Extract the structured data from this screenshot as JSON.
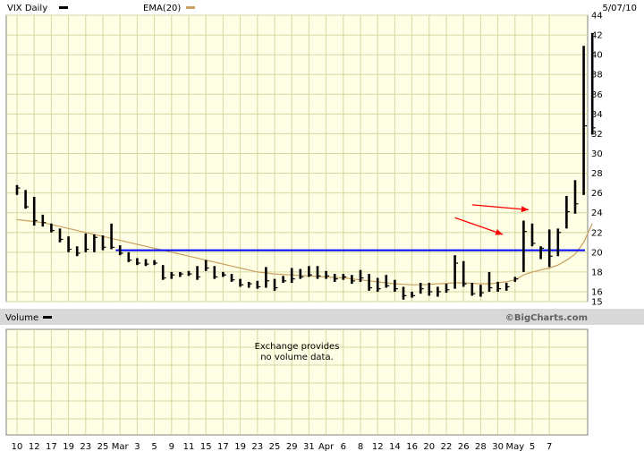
{
  "chart_data": [
    {
      "type": "ohlc",
      "title": "VIX Daily",
      "date": "5/07/10",
      "watermark": "©BigCharts.com",
      "ylim": [
        15,
        44
      ],
      "yticks": [
        15,
        16,
        18,
        20,
        22,
        24,
        26,
        28,
        30,
        32,
        34,
        36,
        38,
        40,
        42,
        44
      ],
      "grid": true,
      "legend": [
        {
          "name": "VIX Daily",
          "color": "#000000"
        },
        {
          "name": "EMA(20)",
          "color": "#c8a060"
        }
      ],
      "xticks": [
        "10",
        "12",
        "17",
        "19",
        "23",
        "25",
        "Mar",
        "3",
        "5",
        "9",
        "11",
        "15",
        "17",
        "19",
        "23",
        "25",
        "29",
        "31",
        "Apr",
        "6",
        "8",
        "12",
        "14",
        "16",
        "20",
        "22",
        "26",
        "28",
        "30",
        "May",
        "5",
        "7"
      ],
      "bars": [
        [
          26.8,
          25.8,
          26.5
        ],
        [
          26.3,
          24.4,
          24.6
        ],
        [
          25.6,
          22.7,
          23.2
        ],
        [
          23.8,
          22.6,
          23.0
        ],
        [
          22.9,
          22.0,
          22.2
        ],
        [
          22.4,
          21.0,
          21.3
        ],
        [
          21.6,
          20.0,
          20.3
        ],
        [
          20.6,
          19.6,
          19.9
        ],
        [
          21.9,
          20.0,
          20.3
        ],
        [
          21.8,
          20.0,
          21.5
        ],
        [
          21.7,
          20.2,
          20.5
        ],
        [
          22.9,
          20.3,
          20.5
        ],
        [
          20.7,
          19.7,
          19.9
        ],
        [
          20.0,
          19.0,
          19.2
        ],
        [
          19.4,
          18.7,
          18.9
        ],
        [
          19.3,
          18.6,
          18.8
        ],
        [
          19.2,
          18.7,
          18.9
        ],
        [
          18.7,
          17.2,
          17.4
        ],
        [
          18.0,
          17.3,
          17.7
        ],
        [
          18.0,
          17.5,
          17.8
        ],
        [
          18.1,
          17.6,
          17.8
        ],
        [
          18.6,
          17.2,
          17.5
        ],
        [
          19.2,
          18.1,
          18.4
        ],
        [
          18.6,
          17.3,
          17.5
        ],
        [
          18.0,
          17.5,
          17.7
        ],
        [
          17.8,
          17.0,
          17.2
        ],
        [
          17.3,
          16.5,
          16.7
        ],
        [
          17.0,
          16.4,
          16.8
        ],
        [
          17.1,
          16.3,
          16.5
        ],
        [
          18.5,
          16.4,
          17.1
        ],
        [
          17.3,
          16.1,
          16.4
        ],
        [
          17.6,
          16.9,
          17.1
        ],
        [
          18.4,
          16.9,
          17.3
        ],
        [
          18.3,
          17.3,
          17.5
        ],
        [
          18.6,
          17.5,
          17.7
        ],
        [
          18.6,
          17.3,
          17.6
        ],
        [
          18.1,
          17.3,
          17.6
        ],
        [
          17.8,
          17.0,
          17.3
        ],
        [
          17.8,
          17.2,
          17.5
        ],
        [
          17.7,
          16.8,
          17.1
        ],
        [
          18.2,
          17.0,
          17.4
        ],
        [
          17.8,
          16.1,
          16.4
        ],
        [
          17.4,
          16.0,
          16.3
        ],
        [
          17.7,
          16.4,
          16.6
        ],
        [
          17.2,
          16.0,
          16.3
        ],
        [
          16.5,
          15.2,
          15.6
        ],
        [
          16.0,
          15.4,
          15.6
        ],
        [
          16.9,
          15.8,
          16.3
        ],
        [
          16.9,
          15.6,
          16.0
        ],
        [
          16.5,
          15.5,
          16.0
        ],
        [
          16.8,
          15.9,
          16.2
        ],
        [
          19.7,
          16.3,
          18.9
        ],
        [
          19.1,
          16.5,
          16.8
        ],
        [
          16.9,
          15.6,
          15.8
        ],
        [
          16.7,
          15.5,
          15.9
        ],
        [
          18.0,
          16.0,
          16.4
        ],
        [
          17.0,
          16.0,
          16.3
        ],
        [
          16.9,
          16.1,
          16.5
        ],
        [
          17.5,
          17.0,
          17.3
        ],
        [
          23.2,
          18.0,
          22.1
        ],
        [
          22.9,
          20.6,
          20.9
        ],
        [
          20.6,
          19.3,
          20.4
        ],
        [
          22.3,
          18.5,
          19.6
        ],
        [
          22.4,
          19.6,
          22.0
        ],
        [
          25.7,
          22.4,
          24.1
        ],
        [
          27.3,
          23.9,
          24.9
        ],
        [
          40.9,
          25.8,
          32.8
        ],
        [
          42.2,
          31.9,
          32.6
        ]
      ],
      "ema20": [
        23.3,
        23.2,
        23.1,
        23.0,
        22.8,
        22.6,
        22.4,
        22.2,
        22.0,
        21.8,
        21.6,
        21.4,
        21.2,
        21.0,
        20.8,
        20.6,
        20.4,
        20.2,
        20.0,
        19.8,
        19.6,
        19.4,
        19.2,
        19.0,
        18.8,
        18.6,
        18.4,
        18.2,
        18.0,
        17.9,
        17.8,
        17.75,
        17.7,
        17.65,
        17.6,
        17.55,
        17.5,
        17.45,
        17.4,
        17.3,
        17.2,
        17.1,
        17.0,
        16.9,
        16.8,
        16.75,
        16.7,
        16.7,
        16.75,
        16.8,
        16.85,
        16.9,
        16.9,
        16.85,
        16.8,
        16.8,
        16.9,
        17.0,
        17.2,
        17.7,
        18.0,
        18.2,
        18.4,
        18.7,
        19.2,
        19.8,
        21.0,
        22.9
      ],
      "horizontal_line": {
        "value": 20.2,
        "color": "#0000ff"
      },
      "arrows": [
        {
          "from": [
            53,
            24.8
          ],
          "to": [
            60,
            24.3
          ],
          "color": "#ff0000"
        },
        {
          "from": [
            51,
            23.5
          ],
          "to": [
            57,
            21.8
          ],
          "color": "#ff0000"
        }
      ]
    },
    {
      "type": "volume",
      "title": "Volume",
      "message_line1": "Exchange provides",
      "message_line2": "no volume data."
    }
  ]
}
